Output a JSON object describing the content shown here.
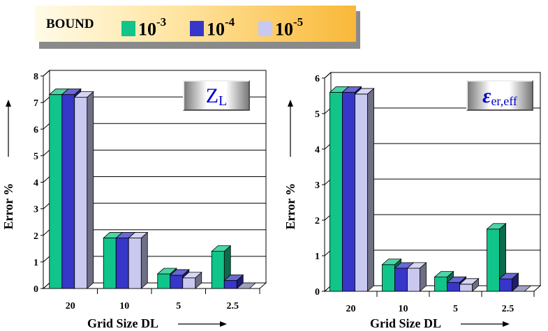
{
  "legend": {
    "title": "BOUND",
    "items": [
      {
        "base": "10",
        "exp": "-3",
        "color": "#10c48a"
      },
      {
        "base": "10",
        "exp": "-4",
        "color": "#3636c8"
      },
      {
        "base": "10",
        "exp": "-5",
        "color": "#c8c8f0"
      }
    ]
  },
  "chart_data": [
    {
      "type": "bar",
      "annotation": {
        "main": "Z",
        "sub": "L"
      },
      "categories": [
        "20",
        "10",
        "5",
        "2.5"
      ],
      "series": [
        {
          "name": "10-3",
          "values": [
            7.3,
            1.9,
            0.55,
            1.4
          ]
        },
        {
          "name": "10-4",
          "values": [
            7.3,
            1.9,
            0.5,
            0.3
          ]
        },
        {
          "name": "10-5",
          "values": [
            7.2,
            1.9,
            0.4,
            0
          ]
        }
      ],
      "xlabel": "Grid Size DL",
      "ylabel": "Error %",
      "ylim": [
        0,
        8
      ],
      "yticks": [
        "0",
        "1",
        "2",
        "3",
        "4",
        "5",
        "6",
        "7",
        "8"
      ],
      "grid": true
    },
    {
      "type": "bar",
      "annotation": {
        "main": "ε",
        "sub": "er,eff"
      },
      "categories": [
        "20",
        "10",
        "5",
        "2.5"
      ],
      "series": [
        {
          "name": "10-3",
          "values": [
            5.6,
            0.75,
            0.4,
            1.75
          ]
        },
        {
          "name": "10-4",
          "values": [
            5.6,
            0.65,
            0.25,
            0.35
          ]
        },
        {
          "name": "10-5",
          "values": [
            5.55,
            0.65,
            0.2,
            0
          ]
        }
      ],
      "xlabel": "Grid Size DL",
      "ylabel": "Error %",
      "ylim": [
        0,
        6
      ],
      "yticks": [
        "0",
        "1",
        "2",
        "3",
        "4",
        "5",
        "6"
      ],
      "grid": true
    }
  ]
}
